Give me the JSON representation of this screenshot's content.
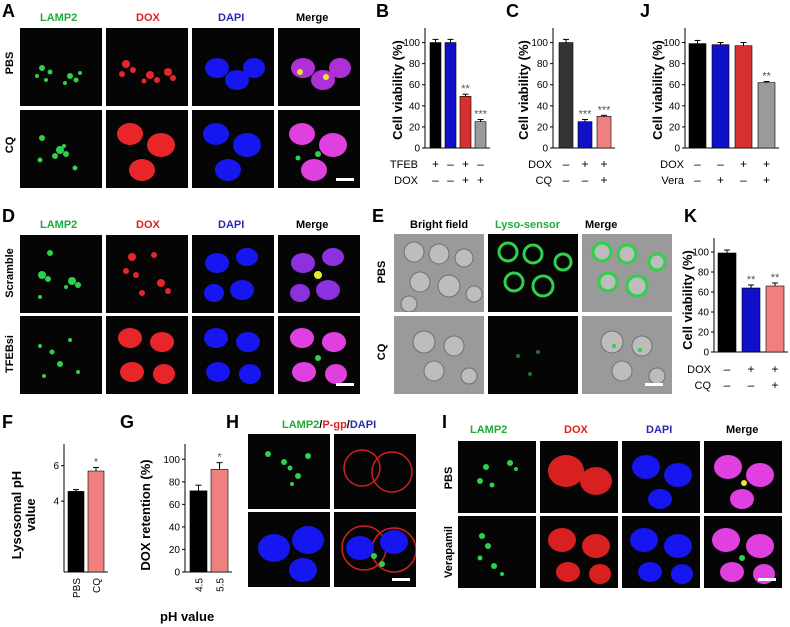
{
  "panels": {
    "A": "A",
    "B": "B",
    "C": "C",
    "J": "J",
    "D": "D",
    "E": "E",
    "K": "K",
    "F": "F",
    "G": "G",
    "H": "H",
    "I": "I"
  },
  "channels": {
    "lamp2": "LAMP2",
    "dox": "DOX",
    "dapi": "DAPI",
    "merge": "Merge",
    "bright": "Bright field",
    "lyso": "Lyso-sensor",
    "pgp": "P-gp",
    "slash": "/"
  },
  "rows": {
    "pbs": "PBS",
    "cq": "CQ",
    "scramble": "Scramble",
    "tfebsi": "TFEBsi",
    "verapamil": "Verapamil"
  },
  "colors": {
    "black": "#000000",
    "blue": "#1010c8",
    "red": "#d83030",
    "salmon": "#f08080",
    "gray": "#9a9a9a",
    "green": "#1faa3a"
  },
  "chart_data": [
    {
      "panel": "B",
      "type": "bar",
      "ylabel": "Cell viability (%)",
      "ylim": [
        0,
        110
      ],
      "yticks": [
        "0",
        "20",
        "40",
        "60",
        "80",
        "100"
      ],
      "values": [
        100,
        100,
        49,
        25
      ],
      "errors": [
        3,
        3,
        2,
        2
      ],
      "colors": [
        "#000000",
        "#1010c8",
        "#d83030",
        "#9a9a9a"
      ],
      "sig": [
        "",
        "",
        "**",
        "***"
      ],
      "factors": [
        {
          "name": "TFEB",
          "signs": [
            "+",
            "–",
            "+",
            "–"
          ]
        },
        {
          "name": "DOX",
          "signs": [
            "–",
            "–",
            "+",
            "+"
          ]
        }
      ]
    },
    {
      "panel": "C",
      "type": "bar",
      "ylabel": "Cell viability (%)",
      "ylim": [
        0,
        110
      ],
      "yticks": [
        "0",
        "20",
        "40",
        "60",
        "80",
        "100"
      ],
      "values": [
        100,
        25,
        30
      ],
      "errors": [
        3,
        2,
        1
      ],
      "colors": [
        "#333333",
        "#1010c8",
        "#f08080"
      ],
      "sig": [
        "",
        "***",
        "***"
      ],
      "factors": [
        {
          "name": "DOX",
          "signs": [
            "–",
            "+",
            "+"
          ]
        },
        {
          "name": "CQ",
          "signs": [
            "–",
            "–",
            "+"
          ]
        }
      ]
    },
    {
      "panel": "J",
      "type": "bar",
      "ylabel": "Cell viability (%)",
      "ylim": [
        0,
        110
      ],
      "yticks": [
        "0",
        "20",
        "40",
        "60",
        "80",
        "100"
      ],
      "values": [
        99,
        98,
        97,
        62
      ],
      "errors": [
        3,
        2,
        3,
        1
      ],
      "colors": [
        "#000000",
        "#1010c8",
        "#d83030",
        "#9a9a9a"
      ],
      "sig": [
        "",
        "",
        "",
        "**"
      ],
      "factors": [
        {
          "name": "DOX",
          "signs": [
            "–",
            "–",
            "+",
            "+"
          ]
        },
        {
          "name": "Vera",
          "signs": [
            "–",
            "+",
            "–",
            "+"
          ]
        }
      ]
    },
    {
      "panel": "K",
      "type": "bar",
      "ylabel": "Cell viability (%)",
      "ylim": [
        0,
        110
      ],
      "yticks": [
        "0",
        "20",
        "40",
        "60",
        "80",
        "100"
      ],
      "values": [
        99,
        64,
        66
      ],
      "errors": [
        3,
        3,
        3
      ],
      "colors": [
        "#000000",
        "#1010c8",
        "#f08080"
      ],
      "sig": [
        "",
        "**",
        "**"
      ],
      "factors": [
        {
          "name": "DOX",
          "signs": [
            "–",
            "+",
            "+"
          ]
        },
        {
          "name": "CQ",
          "signs": [
            "–",
            "–",
            "+"
          ]
        }
      ]
    },
    {
      "panel": "F",
      "type": "bar",
      "ylabel": "Lysosomal pH value",
      "ylim": [
        0,
        7
      ],
      "yticks": [
        "4",
        "6"
      ],
      "tickvals": [
        4,
        6
      ],
      "categories": [
        "PBS",
        "CQ"
      ],
      "values": [
        4.55,
        5.7
      ],
      "errors": [
        0.1,
        0.2
      ],
      "colors": [
        "#000000",
        "#f08080"
      ],
      "sig": [
        "",
        "*"
      ]
    },
    {
      "panel": "G",
      "type": "bar",
      "ylabel": "DOX retention (%)",
      "xlabel": "pH value",
      "ylim": [
        0,
        110
      ],
      "yticks": [
        "0",
        "20",
        "40",
        "60",
        "80",
        "100"
      ],
      "categories": [
        "4.5",
        "5.5"
      ],
      "values": [
        72,
        91
      ],
      "errors": [
        5,
        6
      ],
      "colors": [
        "#000000",
        "#f08080"
      ],
      "sig": [
        "",
        "*"
      ]
    }
  ]
}
